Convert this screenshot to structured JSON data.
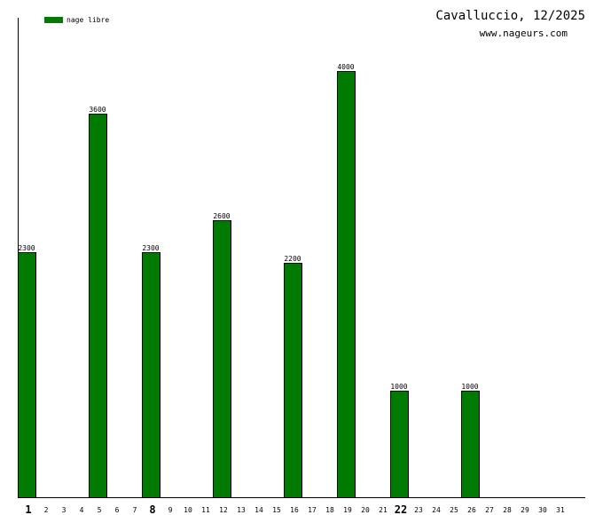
{
  "chart_data": {
    "type": "bar",
    "title": "Cavalluccio, 12/2025",
    "subtitle": "www.nageurs.com",
    "legend": {
      "placement": "top-left",
      "entries": [
        {
          "name": "nage libre",
          "color": "#007a00"
        }
      ]
    },
    "categories": [
      "1",
      "2",
      "3",
      "4",
      "5",
      "6",
      "7",
      "8",
      "9",
      "10",
      "11",
      "12",
      "13",
      "14",
      "15",
      "16",
      "17",
      "18",
      "19",
      "20",
      "21",
      "22",
      "23",
      "24",
      "25",
      "26",
      "27",
      "28",
      "29",
      "30",
      "31"
    ],
    "bold_categories": [
      "1",
      "8",
      "22"
    ],
    "series": [
      {
        "name": "nage libre",
        "color": "#007a00",
        "values": [
          2300,
          0,
          0,
          0,
          3600,
          0,
          0,
          2300,
          0,
          0,
          0,
          2600,
          0,
          0,
          0,
          2200,
          0,
          0,
          4000,
          0,
          0,
          1000,
          0,
          0,
          0,
          1000,
          0,
          0,
          0,
          0,
          0
        ]
      }
    ],
    "ylim": [
      0,
      4500
    ],
    "grid": false,
    "xlabel": "",
    "ylabel": ""
  }
}
